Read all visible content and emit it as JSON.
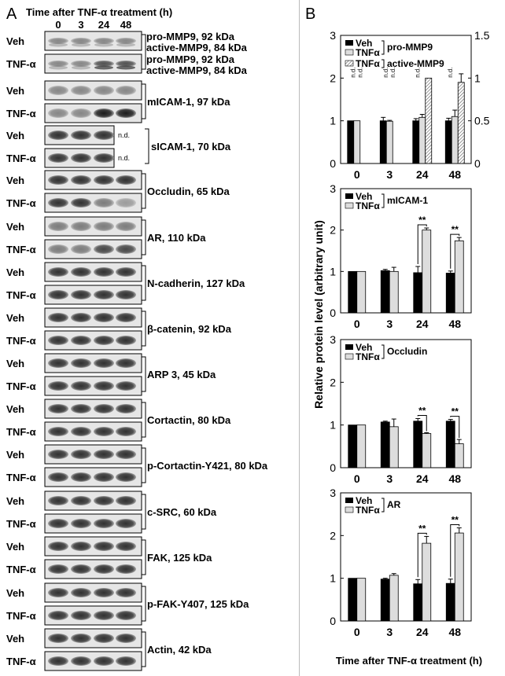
{
  "panel_a": {
    "letter": "A",
    "time_header": "Time after TNF-α treatment (h)",
    "lanes": [
      "0",
      "3",
      "24",
      "48"
    ],
    "rows": {
      "veh": "Veh",
      "tnf": "TNF-α"
    },
    "nd": "n.d.",
    "blots": [
      {
        "label": "pro-MMP9, 92 kDa",
        "label2": "active-MMP9, 84 kDa"
      },
      {
        "label": "mICAM-1, 97 kDa"
      },
      {
        "label": "sICAM-1, 70 kDa"
      },
      {
        "label": "Occludin, 65 kDa"
      },
      {
        "label": "AR, 110 kDa"
      },
      {
        "label": "N-cadherin, 127 kDa"
      },
      {
        "label": "β-catenin, 92 kDa"
      },
      {
        "label": "ARP 3, 45 kDa"
      },
      {
        "label": "Cortactin, 80 kDa"
      },
      {
        "label": "p-Cortactin-Y421, 80 kDa"
      },
      {
        "label": "c-SRC, 60 kDa"
      },
      {
        "label": "FAK, 125 kDa"
      },
      {
        "label": "p-FAK-Y407, 125 kDa"
      },
      {
        "label": "Actin, 42 kDa"
      }
    ]
  },
  "panel_b": {
    "letter": "B",
    "ylabel": "Relative protein level  (arbitrary unit)",
    "xlabel": "Time after TNF-α treatment (h)",
    "legend_veh": "Veh",
    "legend_tnf": "TNFα",
    "sig": "**",
    "nd": "n.d."
  },
  "chart_data": [
    {
      "type": "bar",
      "categories": [
        "0",
        "3",
        "24",
        "48"
      ],
      "series": [
        {
          "name": "Veh",
          "values": [
            1.0,
            1.0,
            1.0,
            1.0
          ],
          "errors": [
            0,
            0.08,
            0.05,
            0.06
          ]
        },
        {
          "name": "TNFα",
          "values": [
            1.0,
            0.99,
            1.08,
            1.1
          ],
          "errors": [
            0,
            0.02,
            0.07,
            0.15
          ]
        }
      ],
      "group_label": "pro-MMP9",
      "secondary_series": {
        "name": "TNFα",
        "label": "active-MMP9",
        "values": [
          null,
          null,
          1.0,
          0.95
        ],
        "errors": [
          0,
          0,
          0,
          0.1
        ],
        "nd": [
          true,
          true,
          false,
          false
        ]
      },
      "ylim": [
        0,
        3
      ],
      "yticks": [
        "0",
        "1",
        "2",
        "3"
      ],
      "y2lim": [
        0,
        1.5
      ],
      "y2ticks": [
        "0",
        "0.5",
        "1",
        "1.5"
      ]
    },
    {
      "type": "bar",
      "categories": [
        "0",
        "3",
        "24",
        "48"
      ],
      "series": [
        {
          "name": "Veh",
          "values": [
            1.0,
            1.02,
            0.97,
            0.96
          ],
          "errors": [
            0,
            0.03,
            0.15,
            0.05
          ]
        },
        {
          "name": "TNFα",
          "values": [
            1.0,
            1.0,
            2.0,
            1.74
          ],
          "errors": [
            0,
            0.1,
            0.05,
            0.08
          ]
        }
      ],
      "group_label": "mICAM-1",
      "sig_at": [
        2,
        3
      ],
      "ylim": [
        0,
        3
      ],
      "yticks": [
        "0",
        "1",
        "2",
        "3"
      ]
    },
    {
      "type": "bar",
      "categories": [
        "0",
        "3",
        "24",
        "48"
      ],
      "series": [
        {
          "name": "Veh",
          "values": [
            1.0,
            1.07,
            1.09,
            1.09
          ],
          "errors": [
            0,
            0.02,
            0.06,
            0.04
          ]
        },
        {
          "name": "TNFα",
          "values": [
            1.0,
            0.96,
            0.8,
            0.56
          ],
          "errors": [
            0,
            0.18,
            0.02,
            0.1
          ]
        }
      ],
      "group_label": "Occludin",
      "sig_at": [
        2,
        3
      ],
      "ylim": [
        0,
        3
      ],
      "yticks": [
        "0",
        "1",
        "2",
        "3"
      ]
    },
    {
      "type": "bar",
      "categories": [
        "0",
        "3",
        "24",
        "48"
      ],
      "series": [
        {
          "name": "Veh",
          "values": [
            1.0,
            0.98,
            0.87,
            0.88
          ],
          "errors": [
            0,
            0.02,
            0.1,
            0.1
          ]
        },
        {
          "name": "TNFα",
          "values": [
            1.0,
            1.07,
            1.82,
            2.06
          ],
          "errors": [
            0,
            0.04,
            0.16,
            0.12
          ]
        }
      ],
      "group_label": "AR",
      "sig_at": [
        2,
        3
      ],
      "ylim": [
        0,
        3
      ],
      "yticks": [
        "0",
        "1",
        "2",
        "3"
      ]
    }
  ]
}
